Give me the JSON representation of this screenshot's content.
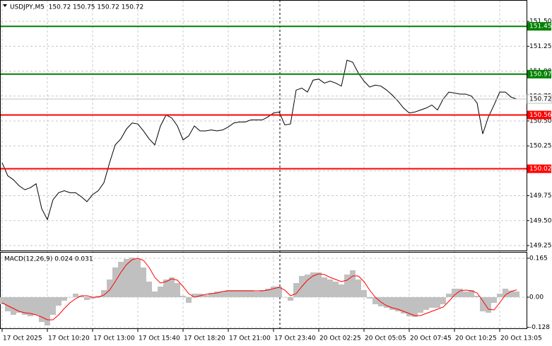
{
  "chart_data": [
    {
      "type": "line",
      "title": "USDJPY,M5  150.72 150.75 150.72 150.72",
      "values": [
        150.08,
        149.95,
        149.91,
        149.85,
        149.81,
        149.83,
        149.87,
        149.62,
        149.51,
        149.71,
        149.78,
        149.8,
        149.78,
        149.78,
        149.74,
        149.69,
        149.76,
        149.8,
        149.88,
        150.08,
        150.26,
        150.32,
        150.42,
        150.48,
        150.47,
        150.4,
        150.32,
        150.26,
        150.45,
        150.56,
        150.53,
        150.45,
        150.31,
        150.35,
        150.45,
        150.4,
        150.4,
        150.41,
        150.4,
        150.41,
        150.44,
        150.48,
        150.49,
        150.49,
        150.51,
        150.51,
        150.51,
        150.54,
        150.58,
        150.59,
        150.46,
        150.47,
        150.81,
        150.83,
        150.79,
        150.91,
        150.92,
        150.88,
        150.9,
        150.88,
        150.85,
        151.11,
        151.09,
        150.98,
        150.9,
        150.84,
        150.86,
        150.85,
        150.81,
        150.76,
        150.7,
        150.63,
        150.58,
        150.59,
        150.61,
        150.63,
        150.66,
        150.61,
        150.72,
        150.79,
        150.78,
        150.77,
        150.77,
        150.75,
        150.68,
        150.37,
        150.54,
        150.66,
        150.79,
        150.79,
        150.74,
        150.72
      ],
      "color": "#000000",
      "ylim": [
        149.2,
        151.7
      ],
      "yticks": [
        {
          "value": 151.5,
          "label": "151.50"
        },
        151.25,
        {
          "value": 151,
          "label": "151.00"
        },
        150.75,
        {
          "value": 150.5,
          "label": "150.50"
        },
        150.25,
        {
          "value": 150,
          "label": "150.00"
        },
        149.75,
        {
          "value": 149.5,
          "label": "149.50"
        },
        149.25
      ],
      "grid": true,
      "levels": [
        {
          "value": 151.45,
          "color": "#008000"
        },
        {
          "value": 150.97,
          "color": "#008000"
        },
        {
          "value": 150.56,
          "color": "#ff0000"
        },
        {
          "value": 150.02,
          "color": "#ff0000"
        }
      ]
    },
    {
      "type": "bar",
      "title": "MACD(12,26,9) 0.024 0.031",
      "categories": [
        "17 Oct 2025",
        null,
        null,
        null,
        null,
        null,
        null,
        null,
        "17 Oct 10:20",
        null,
        null,
        null,
        null,
        null,
        null,
        null,
        "17 Oct 13:00",
        null,
        null,
        null,
        null,
        null,
        null,
        null,
        "17 Oct 15:40",
        null,
        null,
        null,
        null,
        null,
        null,
        null,
        "17 Oct 18:20",
        null,
        null,
        null,
        null,
        null,
        null,
        null,
        "17 Oct 21:00",
        null,
        null,
        null,
        null,
        null,
        null,
        null,
        "17 Oct 23:40",
        null,
        null,
        null,
        null,
        null,
        null,
        null,
        "20 Oct 02:25",
        null,
        null,
        null,
        null,
        null,
        null,
        null,
        "20 Oct 05:05",
        null,
        null,
        null,
        null,
        null,
        null,
        null,
        "20 Oct 07:45",
        null,
        null,
        null,
        null,
        null,
        null,
        null,
        "20 Oct 10:25",
        null,
        null,
        null,
        null,
        null,
        null,
        null,
        "20 Oct 13:05",
        null,
        null,
        null
      ],
      "series": [
        {
          "color": "#c0c0c0",
          "values": [
            -0.03,
            -0.06,
            -0.075,
            -0.066,
            -0.075,
            -0.081,
            -0.075,
            -0.105,
            -0.12,
            -0.075,
            -0.036,
            -0.015,
            0.0,
            0.015,
            0.006,
            -0.012,
            -0.006,
            0.006,
            0.03,
            0.075,
            0.126,
            0.15,
            0.162,
            0.168,
            0.162,
            0.126,
            0.066,
            0.024,
            0.045,
            0.075,
            0.084,
            0.06,
            0.006,
            -0.024,
            0.015,
            0.015,
            0.009,
            0.018,
            0.024,
            0.024,
            0.03,
            0.03,
            0.03,
            0.03,
            0.03,
            0.024,
            0.03,
            0.036,
            0.045,
            0.045,
            0.0,
            -0.015,
            0.06,
            0.09,
            0.096,
            0.105,
            0.105,
            0.084,
            0.075,
            0.066,
            0.054,
            0.096,
            0.114,
            0.075,
            0.03,
            -0.006,
            -0.03,
            -0.039,
            -0.045,
            -0.054,
            -0.06,
            -0.069,
            -0.081,
            -0.084,
            -0.066,
            -0.054,
            -0.045,
            -0.045,
            -0.03,
            0.015,
            0.036,
            0.036,
            0.024,
            0.03,
            0.006,
            -0.06,
            -0.066,
            -0.024,
            0.015,
            0.036,
            0.028,
            0.024
          ]
        },
        {
          "color": "#ff0000",
          "type": "line",
          "values": [
            -0.024,
            -0.036,
            -0.048,
            -0.06,
            -0.066,
            -0.069,
            -0.075,
            -0.084,
            -0.096,
            -0.096,
            -0.075,
            -0.048,
            -0.024,
            -0.006,
            0.006,
            0.006,
            0.0,
            0.0,
            0.009,
            0.03,
            0.066,
            0.105,
            0.138,
            0.159,
            0.165,
            0.156,
            0.126,
            0.084,
            0.06,
            0.066,
            0.078,
            0.072,
            0.045,
            0.015,
            0.0,
            0.006,
            0.012,
            0.015,
            0.018,
            0.024,
            0.027,
            0.027,
            0.027,
            0.027,
            0.027,
            0.027,
            0.027,
            0.03,
            0.036,
            0.042,
            0.03,
            0.006,
            0.015,
            0.045,
            0.072,
            0.09,
            0.099,
            0.096,
            0.084,
            0.075,
            0.066,
            0.072,
            0.09,
            0.09,
            0.066,
            0.03,
            0.0,
            -0.021,
            -0.036,
            -0.045,
            -0.051,
            -0.06,
            -0.069,
            -0.078,
            -0.078,
            -0.069,
            -0.06,
            -0.051,
            -0.042,
            -0.018,
            0.009,
            0.027,
            0.03,
            0.027,
            0.018,
            -0.015,
            -0.051,
            -0.054,
            -0.024,
            0.009,
            0.024,
            0.031
          ]
        }
      ],
      "ylim": [
        -0.132,
        0.189
      ],
      "yticks": [
        0.165,
        {
          "value": 0,
          "label": "0.00"
        },
        -0.128
      ],
      "grid": true
    }
  ]
}
